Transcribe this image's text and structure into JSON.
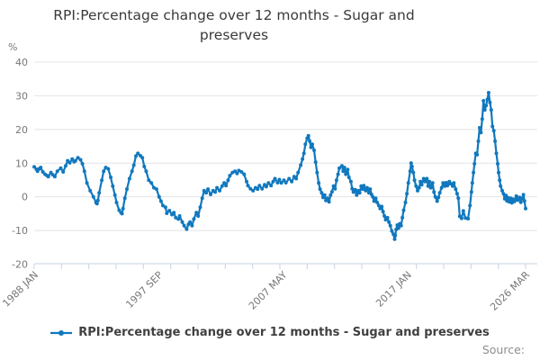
{
  "title": "RPI:Percentage change over 12 months - Sugar and preserves",
  "source_label": "Source:",
  "colors": {
    "line": "#1178be",
    "grid": "#e4e4e6",
    "axis": "#c9d3e2",
    "muted_text": "#76777a"
  },
  "chart_data": {
    "type": "line",
    "title": "RPI:Percentage change over 12 months - Sugar and preserves",
    "series_name": "RPI:Percentage change over 12 months - Sugar and preserves",
    "ylabel": "%",
    "ylim": [
      -20,
      40
    ],
    "yticks": [
      40,
      30,
      20,
      10,
      0,
      -10,
      -20
    ],
    "grid": "horizontal",
    "legend_position": "bottom",
    "x_unit": "decimal year, monthly observations Jan 1988 - Mar 2026",
    "x_range": [
      1988.0,
      2026.17
    ],
    "xticks": [
      {
        "label": "1988 JAN",
        "x": 1988.0
      },
      {
        "label": "1997 SEP",
        "x": 1997.67
      },
      {
        "label": "2007 MAY",
        "x": 2007.33
      },
      {
        "label": "2017 JAN",
        "x": 2017.0
      },
      {
        "label": "2026 MAR",
        "x": 2026.17
      }
    ],
    "minor_tick_count": 19,
    "points": [
      [
        1988.0,
        8.9
      ],
      [
        1988.17,
        8.2
      ],
      [
        1988.26,
        7.6
      ],
      [
        1988.4,
        8.3
      ],
      [
        1988.5,
        8.7
      ],
      [
        1988.67,
        7.4
      ],
      [
        1988.84,
        6.7
      ],
      [
        1989.0,
        6.3
      ],
      [
        1989.1,
        6.0
      ],
      [
        1989.3,
        7.2
      ],
      [
        1989.45,
        6.5
      ],
      [
        1989.6,
        6.0
      ],
      [
        1989.8,
        7.6
      ],
      [
        1990.06,
        8.5
      ],
      [
        1990.25,
        7.4
      ],
      [
        1990.45,
        9.2
      ],
      [
        1990.6,
        10.7
      ],
      [
        1990.76,
        10.1
      ],
      [
        1990.95,
        11.2
      ],
      [
        1991.1,
        10.4
      ],
      [
        1991.2,
        10.7
      ],
      [
        1991.4,
        11.6
      ],
      [
        1991.6,
        11.0
      ],
      [
        1991.75,
        9.8
      ],
      [
        1991.9,
        7.6
      ],
      [
        1992.1,
        4.1
      ],
      [
        1992.35,
        1.8
      ],
      [
        1992.6,
        0.0
      ],
      [
        1992.8,
        -1.7
      ],
      [
        1992.88,
        -2.0
      ],
      [
        1992.95,
        -1.1
      ],
      [
        1993.05,
        1.2
      ],
      [
        1993.25,
        4.9
      ],
      [
        1993.4,
        7.6
      ],
      [
        1993.56,
        8.7
      ],
      [
        1993.75,
        8.3
      ],
      [
        1993.94,
        5.8
      ],
      [
        1994.1,
        3.2
      ],
      [
        1994.27,
        0.5
      ],
      [
        1994.4,
        -1.7
      ],
      [
        1994.6,
        -4.0
      ],
      [
        1994.74,
        -4.7
      ],
      [
        1994.82,
        -5.0
      ],
      [
        1994.9,
        -3.5
      ],
      [
        1995.04,
        -0.4
      ],
      [
        1995.2,
        2.3
      ],
      [
        1995.4,
        5.4
      ],
      [
        1995.6,
        7.6
      ],
      [
        1995.74,
        9.4
      ],
      [
        1995.9,
        12.1
      ],
      [
        1996.05,
        12.9
      ],
      [
        1996.25,
        12.2
      ],
      [
        1996.4,
        11.6
      ],
      [
        1996.55,
        9.0
      ],
      [
        1996.7,
        7.6
      ],
      [
        1996.9,
        4.9
      ],
      [
        1997.1,
        4.1
      ],
      [
        1997.3,
        2.7
      ],
      [
        1997.5,
        2.3
      ],
      [
        1997.7,
        0.0
      ],
      [
        1997.85,
        -1.3
      ],
      [
        1998.0,
        -2.6
      ],
      [
        1998.2,
        -3.1
      ],
      [
        1998.3,
        -4.9
      ],
      [
        1998.5,
        -4.1
      ],
      [
        1998.7,
        -5.3
      ],
      [
        1998.85,
        -4.7
      ],
      [
        1999.0,
        -6.2
      ],
      [
        1999.2,
        -6.6
      ],
      [
        1999.3,
        -5.7
      ],
      [
        1999.5,
        -7.5
      ],
      [
        1999.65,
        -8.6
      ],
      [
        1999.84,
        -9.6
      ],
      [
        1999.98,
        -8.2
      ],
      [
        2000.1,
        -7.5
      ],
      [
        2000.26,
        -8.6
      ],
      [
        2000.4,
        -6.6
      ],
      [
        2000.6,
        -4.7
      ],
      [
        2000.74,
        -5.7
      ],
      [
        2000.9,
        -3.1
      ],
      [
        2001.05,
        -0.4
      ],
      [
        2001.2,
        1.8
      ],
      [
        2001.36,
        1.2
      ],
      [
        2001.5,
        2.3
      ],
      [
        2001.7,
        0.7
      ],
      [
        2001.9,
        1.8
      ],
      [
        2002.06,
        1.4
      ],
      [
        2002.2,
        2.7
      ],
      [
        2002.4,
        1.8
      ],
      [
        2002.6,
        3.2
      ],
      [
        2002.76,
        4.1
      ],
      [
        2002.9,
        3.3
      ],
      [
        2003.06,
        4.9
      ],
      [
        2003.2,
        6.3
      ],
      [
        2003.4,
        7.2
      ],
      [
        2003.6,
        7.6
      ],
      [
        2003.76,
        6.9
      ],
      [
        2003.9,
        7.8
      ],
      [
        2004.1,
        7.4
      ],
      [
        2004.3,
        6.7
      ],
      [
        2004.5,
        4.5
      ],
      [
        2004.6,
        3.3
      ],
      [
        2004.8,
        2.4
      ],
      [
        2005.0,
        1.8
      ],
      [
        2005.2,
        2.7
      ],
      [
        2005.35,
        2.3
      ],
      [
        2005.5,
        3.3
      ],
      [
        2005.7,
        2.4
      ],
      [
        2005.9,
        3.6
      ],
      [
        2006.03,
        3.0
      ],
      [
        2006.2,
        4.1
      ],
      [
        2006.4,
        3.3
      ],
      [
        2006.56,
        4.5
      ],
      [
        2006.7,
        5.4
      ],
      [
        2006.9,
        4.2
      ],
      [
        2007.04,
        5.1
      ],
      [
        2007.2,
        4.1
      ],
      [
        2007.4,
        4.9
      ],
      [
        2007.55,
        4.2
      ],
      [
        2007.8,
        5.4
      ],
      [
        2008.0,
        4.5
      ],
      [
        2008.2,
        6.0
      ],
      [
        2008.35,
        5.4
      ],
      [
        2008.5,
        7.2
      ],
      [
        2008.7,
        9.4
      ],
      [
        2008.84,
        11.2
      ],
      [
        2008.95,
        12.9
      ],
      [
        2009.06,
        15.6
      ],
      [
        2009.2,
        17.4
      ],
      [
        2009.3,
        18.1
      ],
      [
        2009.4,
        16.5
      ],
      [
        2009.5,
        14.7
      ],
      [
        2009.6,
        15.6
      ],
      [
        2009.74,
        13.8
      ],
      [
        2009.86,
        10.3
      ],
      [
        2009.97,
        7.2
      ],
      [
        2010.1,
        4.1
      ],
      [
        2010.2,
        2.3
      ],
      [
        2010.33,
        1.2
      ],
      [
        2010.44,
        -0.2
      ],
      [
        2010.56,
        0.5
      ],
      [
        2010.66,
        -1.1
      ],
      [
        2010.78,
        -0.4
      ],
      [
        2010.9,
        -1.5
      ],
      [
        2011.02,
        0.5
      ],
      [
        2011.13,
        1.5
      ],
      [
        2011.25,
        3.2
      ],
      [
        2011.37,
        2.4
      ],
      [
        2011.48,
        4.9
      ],
      [
        2011.6,
        6.7
      ],
      [
        2011.7,
        8.5
      ],
      [
        2011.9,
        9.2
      ],
      [
        2012.0,
        7.6
      ],
      [
        2012.1,
        8.7
      ],
      [
        2012.2,
        6.7
      ],
      [
        2012.35,
        8.1
      ],
      [
        2012.45,
        5.8
      ],
      [
        2012.6,
        4.5
      ],
      [
        2012.7,
        2.4
      ],
      [
        2012.8,
        1.4
      ],
      [
        2012.93,
        2.1
      ],
      [
        2013.05,
        0.5
      ],
      [
        2013.16,
        1.8
      ],
      [
        2013.28,
        1.2
      ],
      [
        2013.4,
        3.2
      ],
      [
        2013.5,
        2.3
      ],
      [
        2013.6,
        3.3
      ],
      [
        2013.75,
        1.8
      ],
      [
        2013.86,
        2.7
      ],
      [
        2014.0,
        1.2
      ],
      [
        2014.1,
        2.3
      ],
      [
        2014.2,
        0.7
      ],
      [
        2014.3,
        0.0
      ],
      [
        2014.4,
        -1.3
      ],
      [
        2014.53,
        -0.4
      ],
      [
        2014.64,
        -1.7
      ],
      [
        2014.76,
        -2.6
      ],
      [
        2014.87,
        -3.5
      ],
      [
        2015.0,
        -2.9
      ],
      [
        2015.1,
        -4.4
      ],
      [
        2015.2,
        -5.7
      ],
      [
        2015.3,
        -6.8
      ],
      [
        2015.44,
        -6.2
      ],
      [
        2015.55,
        -7.5
      ],
      [
        2015.66,
        -8.6
      ],
      [
        2015.78,
        -10.2
      ],
      [
        2015.9,
        -11.1
      ],
      [
        2016.0,
        -12.6
      ],
      [
        2016.05,
        -11.5
      ],
      [
        2016.12,
        -9.7
      ],
      [
        2016.2,
        -8.4
      ],
      [
        2016.3,
        -9.3
      ],
      [
        2016.4,
        -8.0
      ],
      [
        2016.5,
        -8.6
      ],
      [
        2016.6,
        -6.2
      ],
      [
        2016.7,
        -4.0
      ],
      [
        2016.84,
        -1.7
      ],
      [
        2016.95,
        0.9
      ],
      [
        2017.06,
        4.1
      ],
      [
        2017.2,
        7.6
      ],
      [
        2017.28,
        10.0
      ],
      [
        2017.35,
        9.0
      ],
      [
        2017.45,
        7.2
      ],
      [
        2017.54,
        4.9
      ],
      [
        2017.66,
        3.2
      ],
      [
        2017.78,
        1.8
      ],
      [
        2017.9,
        2.7
      ],
      [
        2018.0,
        4.5
      ],
      [
        2018.1,
        3.6
      ],
      [
        2018.25,
        5.4
      ],
      [
        2018.36,
        4.5
      ],
      [
        2018.5,
        5.4
      ],
      [
        2018.6,
        3.2
      ],
      [
        2018.7,
        4.5
      ],
      [
        2018.8,
        2.7
      ],
      [
        2018.95,
        4.1
      ],
      [
        2019.05,
        1.4
      ],
      [
        2019.16,
        0.0
      ],
      [
        2019.3,
        -1.3
      ],
      [
        2019.4,
        -0.2
      ],
      [
        2019.5,
        1.2
      ],
      [
        2019.65,
        2.7
      ],
      [
        2019.76,
        4.1
      ],
      [
        2019.9,
        3.2
      ],
      [
        2020.0,
        4.2
      ],
      [
        2020.1,
        3.3
      ],
      [
        2020.25,
        4.5
      ],
      [
        2020.35,
        3.9
      ],
      [
        2020.5,
        3.2
      ],
      [
        2020.6,
        4.1
      ],
      [
        2020.74,
        2.3
      ],
      [
        2020.85,
        0.9
      ],
      [
        2020.95,
        -0.4
      ],
      [
        2021.05,
        -5.8
      ],
      [
        2021.2,
        -6.4
      ],
      [
        2021.33,
        -4.2
      ],
      [
        2021.5,
        -6.3
      ],
      [
        2021.7,
        -6.5
      ],
      [
        2021.85,
        -2.6
      ],
      [
        2021.96,
        1.4
      ],
      [
        2022.03,
        4.1
      ],
      [
        2022.12,
        7.2
      ],
      [
        2022.2,
        9.8
      ],
      [
        2022.3,
        12.9
      ],
      [
        2022.4,
        12.5
      ],
      [
        2022.5,
        16.5
      ],
      [
        2022.6,
        20.5
      ],
      [
        2022.7,
        19.1
      ],
      [
        2022.8,
        23.1
      ],
      [
        2022.9,
        28.5
      ],
      [
        2023.0,
        25.8
      ],
      [
        2023.1,
        27.1
      ],
      [
        2023.2,
        28.9
      ],
      [
        2023.3,
        30.9
      ],
      [
        2023.4,
        28.0
      ],
      [
        2023.5,
        25.8
      ],
      [
        2023.6,
        20.9
      ],
      [
        2023.7,
        19.6
      ],
      [
        2023.8,
        16.5
      ],
      [
        2023.9,
        12.9
      ],
      [
        2024.0,
        9.8
      ],
      [
        2024.07,
        7.2
      ],
      [
        2024.16,
        4.9
      ],
      [
        2024.23,
        3.2
      ],
      [
        2024.35,
        1.8
      ],
      [
        2024.45,
        0.9
      ],
      [
        2024.55,
        -0.6
      ],
      [
        2024.65,
        0.4
      ],
      [
        2024.72,
        -1.2
      ],
      [
        2024.8,
        -0.3
      ],
      [
        2024.9,
        -1.5
      ],
      [
        2025.0,
        -0.4
      ],
      [
        2025.1,
        -1.8
      ],
      [
        2025.2,
        -0.7
      ],
      [
        2025.3,
        -1.4
      ],
      [
        2025.45,
        0.2
      ],
      [
        2025.55,
        -1.0
      ],
      [
        2025.7,
        -0.2
      ],
      [
        2025.8,
        -1.6
      ],
      [
        2025.9,
        -0.5
      ],
      [
        2026.0,
        0.6
      ],
      [
        2026.08,
        -1.2
      ],
      [
        2026.17,
        -3.5
      ]
    ]
  }
}
